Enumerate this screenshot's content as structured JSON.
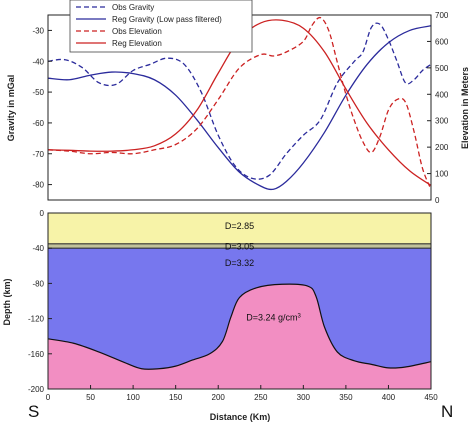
{
  "chart_data": [
    {
      "type": "line",
      "panel": "top",
      "xlim": [
        0,
        450
      ],
      "ylabel": "Gravity in mGal",
      "ylim": [
        -85,
        -25
      ],
      "yticks": [
        -30,
        -40,
        -50,
        -60,
        -70,
        -80
      ],
      "y2label": "Elevation in Meters",
      "y2lim": [
        0,
        700
      ],
      "y2ticks": [
        0,
        100,
        200,
        300,
        400,
        500,
        600,
        700
      ],
      "legend": "top-center",
      "series": [
        {
          "name": "Obs Gravity",
          "axis": "left",
          "color": "#2b2b9c",
          "style": "dashed",
          "x": [
            0,
            20,
            40,
            60,
            80,
            100,
            120,
            140,
            160,
            180,
            200,
            220,
            240,
            260,
            280,
            300,
            320,
            340,
            360,
            370,
            380,
            390,
            400,
            410,
            420,
            430,
            440,
            450
          ],
          "y": [
            -40,
            -39.5,
            -42,
            -47,
            -47.5,
            -43,
            -41,
            -39,
            -41,
            -50,
            -64,
            -74,
            -78,
            -77,
            -70,
            -64,
            -59,
            -47,
            -40,
            -37,
            -29,
            -28,
            -33,
            -40,
            -47,
            -46,
            -43,
            -41
          ]
        },
        {
          "name": "Reg Gravity (Low pass filtered)",
          "axis": "left",
          "color": "#2b2b9c",
          "style": "solid",
          "x": [
            0,
            25,
            50,
            75,
            100,
            125,
            150,
            175,
            200,
            225,
            250,
            265,
            280,
            300,
            325,
            350,
            375,
            400,
            425,
            450
          ],
          "y": [
            -45.5,
            -46,
            -44.5,
            -43.5,
            -44,
            -46,
            -51,
            -59,
            -68,
            -76,
            -80.5,
            -81.5,
            -79,
            -73,
            -63,
            -51,
            -41,
            -34,
            -30,
            -28.5
          ]
        },
        {
          "name": "Obs Elevation",
          "axis": "right",
          "color": "#cc2222",
          "style": "dashed",
          "x": [
            0,
            25,
            50,
            75,
            100,
            125,
            150,
            175,
            200,
            225,
            250,
            265,
            280,
            300,
            310,
            320,
            330,
            340,
            350,
            360,
            370,
            380,
            390,
            400,
            410,
            420,
            430,
            440,
            450
          ],
          "y": [
            190,
            185,
            175,
            180,
            175,
            190,
            210,
            270,
            380,
            500,
            550,
            545,
            560,
            600,
            660,
            690,
            640,
            520,
            400,
            300,
            220,
            180,
            240,
            340,
            380,
            370,
            260,
            120,
            40
          ]
        },
        {
          "name": "Reg Elevation",
          "axis": "right",
          "color": "#cc2222",
          "style": "solid",
          "x": [
            0,
            25,
            50,
            75,
            100,
            125,
            150,
            175,
            200,
            225,
            250,
            275,
            300,
            325,
            350,
            375,
            400,
            425,
            450
          ],
          "y": [
            190,
            188,
            185,
            185,
            190,
            205,
            250,
            340,
            480,
            610,
            670,
            680,
            650,
            560,
            420,
            290,
            190,
            110,
            55
          ]
        }
      ]
    },
    {
      "type": "area",
      "panel": "bottom",
      "xlabel": "Distance (Km)",
      "ylabel": "Depth (km)",
      "xlim": [
        0,
        450
      ],
      "xticks": [
        0,
        50,
        100,
        150,
        200,
        250,
        300,
        350,
        400,
        450
      ],
      "ylim": [
        -200,
        0
      ],
      "yticks": [
        0,
        -40,
        -80,
        -120,
        -160,
        -200
      ],
      "layers": [
        {
          "label": "D=2.85",
          "color": "#f7f3a8",
          "top": 0,
          "bottom": -35
        },
        {
          "label": "D=3.05",
          "color": "#c2c29a",
          "top": -35,
          "bottom": -40
        },
        {
          "label": "D=3.32",
          "color": "#7777ee",
          "top": -40,
          "bottom": -200
        }
      ],
      "body": {
        "label_main": "D=3.24 g/cm",
        "label_sup": "3",
        "color": "#f28ec2",
        "x": [
          0,
          30,
          60,
          90,
          110,
          130,
          150,
          170,
          190,
          205,
          215,
          225,
          245,
          275,
          305,
          315,
          325,
          340,
          360,
          380,
          400,
          420,
          450
        ],
        "y": [
          -143,
          -148,
          -158,
          -170,
          -177,
          -177,
          -174,
          -167,
          -160,
          -146,
          -118,
          -96,
          -85,
          -81,
          -83,
          -95,
          -130,
          -158,
          -168,
          -172,
          -176,
          -175,
          -169
        ]
      }
    }
  ],
  "labels": {
    "left_end": "S",
    "right_end": "N"
  }
}
